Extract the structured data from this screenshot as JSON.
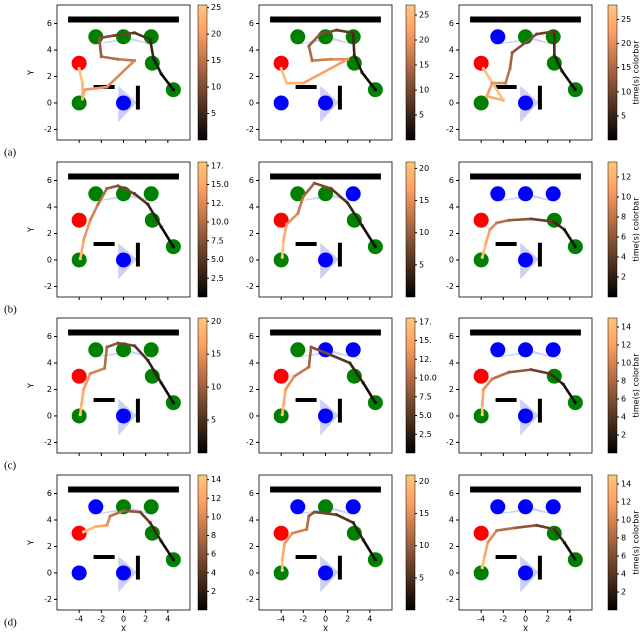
{
  "shared": {
    "xlim": [
      -6,
      6
    ],
    "ylim": [
      -2.8,
      7.4
    ],
    "xticks": [
      -4,
      -2,
      0,
      2,
      4
    ],
    "yticks": [
      -2,
      0,
      2,
      4,
      6
    ],
    "x_label": "X",
    "y_label": "Y",
    "colorbar_label": "time(s) colorbar",
    "row_labels": [
      "(a)",
      "(b)",
      "(c)",
      "(d)"
    ],
    "circles": {
      "x": [
        -2.5,
        0,
        2.5,
        -4,
        -4,
        0,
        2.6,
        4.5
      ],
      "y": [
        5,
        5,
        5,
        3,
        0,
        0,
        3,
        1
      ]
    },
    "walls": [
      [
        -5,
        6.3,
        5,
        6.3
      ],
      [
        -2.7,
        1.2,
        -0.8,
        1.2
      ],
      [
        1.3,
        -0.5,
        1.3,
        1.3
      ]
    ]
  },
  "chart_data": [
    {
      "type": "trajectory",
      "circle_colors": [
        "green",
        "green",
        "green",
        "red",
        "green",
        "blue",
        "green",
        "green"
      ],
      "clim": [
        0,
        25.5
      ],
      "cticks": [
        5,
        10,
        15,
        20,
        25
      ],
      "trajectory": {
        "x": [
          4.5,
          3.4,
          2.7,
          2.4,
          1,
          -0.8,
          -2.2,
          -2,
          -0.5,
          1,
          -1.5,
          -3.5,
          -3.7,
          -3.7,
          -4
        ],
        "y": [
          1,
          2.2,
          3.4,
          4.8,
          5.3,
          5.1,
          4.9,
          3.5,
          3.3,
          3.2,
          1.2,
          1,
          0.3,
          1.5,
          2.6
        ]
      }
    },
    {
      "type": "trajectory",
      "circle_colors": [
        "green",
        "green",
        "green",
        "red",
        "blue",
        "blue",
        "green",
        "green"
      ],
      "clim": [
        0,
        27
      ],
      "cticks": [
        5,
        10,
        15,
        20,
        25
      ],
      "trajectory": {
        "x": [
          4.5,
          3.3,
          2.6,
          2.5,
          1,
          -0.5,
          -1.5,
          -1.2,
          0.5,
          2,
          -2,
          -3.5,
          -4
        ],
        "y": [
          1,
          2.3,
          3.6,
          5.3,
          5.5,
          5.2,
          4.3,
          3.2,
          3.3,
          3.3,
          1.5,
          1.5,
          2.6
        ]
      }
    },
    {
      "type": "trajectory",
      "circle_colors": [
        "blue",
        "green",
        "green",
        "red",
        "green",
        "blue",
        "green",
        "green"
      ],
      "clim": [
        0,
        28
      ],
      "cticks": [
        5,
        10,
        15,
        20,
        25
      ],
      "trajectory": {
        "x": [
          4.5,
          3.3,
          2.6,
          2.6,
          1,
          -1.2,
          -1.4,
          -1.8,
          -3,
          -3.5,
          -2,
          -3.8
        ],
        "y": [
          1,
          2.4,
          3.6,
          5.4,
          5.2,
          3.8,
          2.6,
          1.5,
          1.5,
          0.5,
          0.2,
          2.6
        ]
      }
    },
    {
      "type": "trajectory",
      "circle_colors": [
        "green",
        "green",
        "green",
        "red",
        "green",
        "blue",
        "green",
        "green"
      ],
      "clim": [
        0,
        18
      ],
      "cticks": [
        {
          "value": 2.5,
          "label": "2.5"
        },
        {
          "value": 5,
          "label": "5.0"
        },
        {
          "value": 7.5,
          "label": "7.5"
        },
        {
          "value": 10,
          "label": "10.0"
        },
        {
          "value": 12.5,
          "label": "12."
        },
        {
          "value": 15,
          "label": "15.0"
        },
        {
          "value": 17.5,
          "label": "17."
        }
      ],
      "trajectory": {
        "x": [
          4.5,
          3.4,
          2.2,
          1,
          -0.5,
          -1.5,
          -2.3,
          -3,
          -3.6,
          -3.8,
          -3.9
        ],
        "y": [
          1,
          2.5,
          4.2,
          5,
          5.6,
          5.4,
          4.2,
          3,
          1.5,
          0.5,
          0.1
        ]
      }
    },
    {
      "type": "trajectory",
      "circle_colors": [
        "green",
        "green",
        "blue",
        "red",
        "green",
        "blue",
        "green",
        "green"
      ],
      "clim": [
        0,
        21
      ],
      "cticks": [
        5,
        10,
        15,
        20
      ],
      "trajectory": {
        "x": [
          4.5,
          3.3,
          2,
          0.5,
          -1,
          -2,
          -2.5,
          -3.5,
          -3.8,
          -3.9
        ],
        "y": [
          1,
          2.6,
          4.3,
          5.4,
          5.8,
          4.8,
          3.5,
          2.7,
          1.5,
          0.2
        ]
      }
    },
    {
      "type": "trajectory",
      "circle_colors": [
        "blue",
        "blue",
        "blue",
        "red",
        "green",
        "blue",
        "green",
        "green"
      ],
      "clim": [
        0,
        13.5
      ],
      "cticks": [
        2,
        4,
        6,
        8,
        10,
        12
      ],
      "trajectory": {
        "x": [
          4.5,
          3.5,
          2.5,
          0.5,
          -1.5,
          -2.6,
          -3.2,
          -3.6,
          -3.9
        ],
        "y": [
          1,
          2.3,
          2.9,
          3.1,
          3,
          2.8,
          2.3,
          1.2,
          0.2
        ]
      }
    },
    {
      "type": "trajectory",
      "circle_colors": [
        "green",
        "green",
        "green",
        "red",
        "green",
        "blue",
        "green",
        "green"
      ],
      "clim": [
        0,
        20.5
      ],
      "cticks": [
        5,
        10,
        15,
        20
      ],
      "trajectory": {
        "x": [
          4.5,
          3.4,
          2.2,
          1,
          -0.5,
          -1.5,
          -1.7,
          -3,
          -3.6,
          -3.8,
          -3.9
        ],
        "y": [
          1,
          2.5,
          4.2,
          5.3,
          5.5,
          5.2,
          3.6,
          3.2,
          2,
          0.8,
          0.1
        ]
      }
    },
    {
      "type": "trajectory",
      "circle_colors": [
        "green",
        "blue",
        "blue",
        "red",
        "green",
        "blue",
        "green",
        "green"
      ],
      "clim": [
        0,
        18
      ],
      "cticks": [
        {
          "value": 2.5,
          "label": "2.5"
        },
        {
          "value": 5,
          "label": "5.0"
        },
        {
          "value": 7.5,
          "label": "7.5"
        },
        {
          "value": 10,
          "label": "10.0"
        },
        {
          "value": 12.5,
          "label": "12."
        },
        {
          "value": 15,
          "label": "15."
        },
        {
          "value": 17.5,
          "label": "17."
        }
      ],
      "trajectory": {
        "x": [
          4.5,
          3.4,
          2.2,
          0.5,
          -1.3,
          -1.5,
          -2.8,
          -3.6,
          -3.8,
          -3.9
        ],
        "y": [
          1,
          2.5,
          4,
          4.6,
          5.2,
          3.7,
          3,
          2,
          0.8,
          0.1
        ]
      }
    },
    {
      "type": "trajectory",
      "circle_colors": [
        "blue",
        "blue",
        "blue",
        "red",
        "green",
        "blue",
        "green",
        "green"
      ],
      "clim": [
        0,
        15
      ],
      "cticks": [
        2,
        4,
        6,
        8,
        10,
        12,
        14
      ],
      "trajectory": {
        "x": [
          4.5,
          3.4,
          2.2,
          0.5,
          -1.5,
          -3,
          -3.8,
          -3.9,
          -3.9
        ],
        "y": [
          1,
          2.4,
          3.2,
          3.5,
          3.3,
          2.8,
          2,
          0.8,
          0.1
        ]
      }
    },
    {
      "type": "trajectory",
      "circle_colors": [
        "blue",
        "green",
        "green",
        "red",
        "blue",
        "blue",
        "green",
        "green"
      ],
      "clim": [
        0,
        14.5
      ],
      "cticks": [
        2,
        4,
        6,
        8,
        10,
        12,
        14
      ],
      "trajectory": {
        "x": [
          4.5,
          3.4,
          2.4,
          1.5,
          0,
          -1.2,
          -1.5,
          -2.5,
          -3.6
        ],
        "y": [
          1,
          2.4,
          3.8,
          4.6,
          4.7,
          4.3,
          3.6,
          3.5,
          3.1
        ]
      }
    },
    {
      "type": "trajectory",
      "circle_colors": [
        "blue",
        "green",
        "blue",
        "red",
        "green",
        "blue",
        "green",
        "green"
      ],
      "clim": [
        0,
        21
      ],
      "cticks": [
        5,
        10,
        15,
        20
      ],
      "trajectory": {
        "x": [
          4.5,
          3.4,
          2.5,
          1,
          -1,
          -1.5,
          -1.7,
          -3,
          -3.7,
          -3.9,
          -3.9
        ],
        "y": [
          1,
          2.5,
          3.8,
          4.4,
          4.6,
          4.3,
          3.3,
          3,
          2.2,
          1,
          0.2
        ]
      }
    },
    {
      "type": "trajectory",
      "circle_colors": [
        "blue",
        "blue",
        "blue",
        "red",
        "green",
        "blue",
        "green",
        "green"
      ],
      "clim": [
        0,
        15
      ],
      "cticks": [
        2,
        4,
        6,
        8,
        10,
        12,
        14
      ],
      "trajectory": {
        "x": [
          4.5,
          3.5,
          2.6,
          1,
          -1,
          -2.6,
          -3.4,
          -3.7,
          -3.9
        ],
        "y": [
          1,
          2.3,
          3.3,
          3.6,
          3.4,
          3.2,
          2.3,
          1.2,
          0.4
        ]
      }
    }
  ]
}
